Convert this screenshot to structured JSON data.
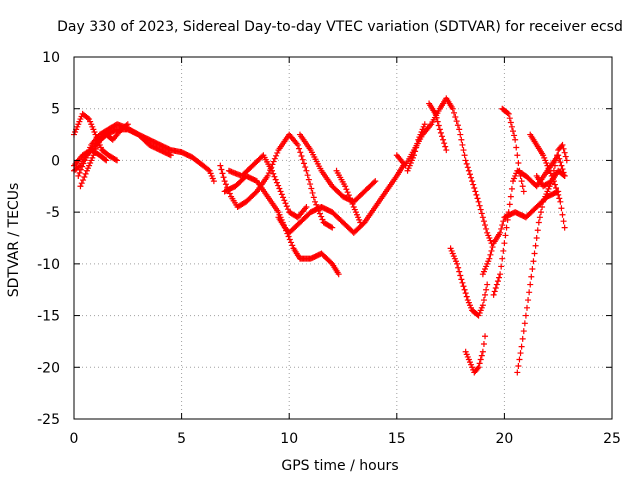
{
  "chart_data": {
    "type": "scatter",
    "title": "Day 330 of 2023, Sidereal Day-to-day VTEC variation (SDTVAR) for receiver ecsd",
    "xlabel": "GPS time / hours",
    "ylabel": "SDTVAR / TECUs",
    "xlim": [
      0,
      25
    ],
    "ylim": [
      -25,
      10
    ],
    "xticks": [
      0,
      5,
      10,
      15,
      20,
      25
    ],
    "yticks": [
      -25,
      -20,
      -15,
      -10,
      -5,
      0,
      5,
      10
    ],
    "grid": true,
    "marker": "+",
    "series": [
      {
        "name": "SDTVAR",
        "color": "#ff0000",
        "tracks": [
          [
            [
              0.0,
              -1.0
            ],
            [
              0.3,
              -0.5
            ],
            [
              0.6,
              0.5
            ],
            [
              1.0,
              1.5
            ],
            [
              1.5,
              2.5
            ],
            [
              2.0,
              3.0
            ],
            [
              2.5,
              3.0
            ],
            [
              3.0,
              2.5
            ],
            [
              3.5,
              2.0
            ],
            [
              4.0,
              1.5
            ],
            [
              4.5,
              1.0
            ],
            [
              5.0,
              0.8
            ],
            [
              5.5,
              0.3
            ],
            [
              6.0,
              -0.5
            ],
            [
              6.3,
              -1.0
            ],
            [
              6.5,
              -2.0
            ]
          ],
          [
            [
              0.0,
              2.5
            ],
            [
              0.2,
              3.5
            ],
            [
              0.4,
              4.5
            ],
            [
              0.7,
              4.0
            ],
            [
              1.0,
              2.5
            ],
            [
              1.3,
              1.0
            ],
            [
              1.6,
              0.5
            ],
            [
              2.0,
              0.0
            ]
          ],
          [
            [
              0.2,
              -1.5
            ],
            [
              0.5,
              0.0
            ],
            [
              0.8,
              1.5
            ],
            [
              1.2,
              2.5
            ],
            [
              1.6,
              3.0
            ],
            [
              2.0,
              3.5
            ],
            [
              2.4,
              3.2
            ],
            [
              3.0,
              2.5
            ],
            [
              3.5,
              1.5
            ],
            [
              4.0,
              1.0
            ],
            [
              4.5,
              0.5
            ]
          ],
          [
            [
              0.3,
              -2.5
            ],
            [
              0.6,
              -1.0
            ],
            [
              0.9,
              0.5
            ],
            [
              1.2,
              2.0
            ],
            [
              1.5,
              2.5
            ],
            [
              1.8,
              2.0
            ],
            [
              2.2,
              3.0
            ],
            [
              2.5,
              3.5
            ]
          ],
          [
            [
              0.0,
              -0.5
            ],
            [
              0.4,
              0.5
            ],
            [
              0.8,
              1.0
            ],
            [
              1.2,
              0.5
            ],
            [
              1.5,
              0.0
            ]
          ],
          [
            [
              6.8,
              -0.5
            ],
            [
              7.0,
              -2.0
            ],
            [
              7.3,
              -3.5
            ],
            [
              7.6,
              -4.5
            ],
            [
              8.0,
              -4.0
            ],
            [
              8.5,
              -3.0
            ],
            [
              9.0,
              -1.5
            ],
            [
              9.5,
              1.0
            ],
            [
              10.0,
              2.5
            ],
            [
              10.4,
              1.5
            ],
            [
              10.8,
              -1.0
            ],
            [
              11.2,
              -4.0
            ],
            [
              11.6,
              -6.0
            ],
            [
              12.0,
              -6.5
            ]
          ],
          [
            [
              7.0,
              -3.0
            ],
            [
              7.5,
              -2.5
            ],
            [
              8.0,
              -1.5
            ],
            [
              8.5,
              -2.0
            ],
            [
              9.0,
              -3.5
            ],
            [
              9.5,
              -5.0
            ],
            [
              9.8,
              -6.5
            ],
            [
              10.0,
              -7.0
            ],
            [
              10.5,
              -6.0
            ],
            [
              11.0,
              -5.0
            ],
            [
              11.5,
              -4.5
            ],
            [
              12.0,
              -5.0
            ],
            [
              12.5,
              -6.0
            ],
            [
              13.0,
              -7.0
            ],
            [
              13.5,
              -6.0
            ],
            [
              14.0,
              -4.5
            ],
            [
              14.5,
              -3.0
            ],
            [
              15.0,
              -1.5
            ],
            [
              15.3,
              -0.5
            ]
          ],
          [
            [
              7.2,
              -1.0
            ],
            [
              7.8,
              -1.5
            ],
            [
              8.3,
              -0.5
            ],
            [
              8.8,
              0.5
            ],
            [
              9.2,
              -1.0
            ],
            [
              9.6,
              -3.0
            ],
            [
              10.0,
              -5.0
            ],
            [
              10.4,
              -5.5
            ],
            [
              10.8,
              -4.5
            ]
          ],
          [
            [
              9.5,
              -5.5
            ],
            [
              9.8,
              -6.5
            ],
            [
              10.2,
              -8.5
            ],
            [
              10.5,
              -9.5
            ],
            [
              11.0,
              -9.5
            ],
            [
              11.5,
              -9.0
            ],
            [
              12.0,
              -10.0
            ],
            [
              12.3,
              -11.0
            ]
          ],
          [
            [
              10.5,
              2.5
            ],
            [
              11.0,
              1.0
            ],
            [
              11.5,
              -1.0
            ],
            [
              12.0,
              -2.5
            ],
            [
              12.5,
              -3.5
            ],
            [
              13.0,
              -4.0
            ],
            [
              13.5,
              -3.0
            ],
            [
              14.0,
              -2.0
            ]
          ],
          [
            [
              12.2,
              -1.0
            ],
            [
              12.6,
              -2.5
            ],
            [
              13.0,
              -4.5
            ],
            [
              13.3,
              -6.0
            ]
          ],
          [
            [
              15.0,
              0.5
            ],
            [
              15.4,
              -0.5
            ],
            [
              15.8,
              1.0
            ],
            [
              16.2,
              2.5
            ],
            [
              16.6,
              3.5
            ],
            [
              17.0,
              5.0
            ],
            [
              17.3,
              6.0
            ],
            [
              17.6,
              5.0
            ],
            [
              17.9,
              3.0
            ],
            [
              18.2,
              0.0
            ],
            [
              18.5,
              -2.0
            ],
            [
              18.8,
              -4.0
            ],
            [
              19.0,
              -5.5
            ],
            [
              19.2,
              -7.0
            ],
            [
              19.4,
              -8.0
            ]
          ],
          [
            [
              16.5,
              5.5
            ],
            [
              16.8,
              4.5
            ],
            [
              17.0,
              3.0
            ],
            [
              17.3,
              1.0
            ]
          ],
          [
            [
              15.5,
              -1.0
            ],
            [
              15.8,
              0.5
            ],
            [
              16.0,
              2.0
            ],
            [
              16.3,
              3.5
            ]
          ],
          [
            [
              17.5,
              -8.5
            ],
            [
              17.8,
              -10.0
            ],
            [
              18.0,
              -11.5
            ],
            [
              18.3,
              -13.5
            ],
            [
              18.5,
              -14.5
            ],
            [
              18.8,
              -15.0
            ],
            [
              19.0,
              -14.0
            ],
            [
              19.2,
              -12.0
            ]
          ],
          [
            [
              18.2,
              -18.5
            ],
            [
              18.4,
              -19.5
            ],
            [
              18.6,
              -20.5
            ],
            [
              18.8,
              -20.0
            ],
            [
              19.0,
              -18.5
            ],
            [
              19.1,
              -17.0
            ]
          ],
          [
            [
              19.0,
              -11.0
            ],
            [
              19.3,
              -9.5
            ],
            [
              19.5,
              -8.0
            ],
            [
              19.8,
              -7.0
            ],
            [
              20.0,
              -5.5
            ],
            [
              20.5,
              -5.0
            ],
            [
              21.0,
              -5.5
            ],
            [
              21.5,
              -4.5
            ],
            [
              22.0,
              -3.5
            ],
            [
              22.5,
              -3.0
            ]
          ],
          [
            [
              19.5,
              -13.0
            ],
            [
              19.8,
              -11.0
            ],
            [
              20.0,
              -8.0
            ],
            [
              20.2,
              -5.0
            ],
            [
              20.4,
              -2.0
            ],
            [
              20.6,
              -1.0
            ],
            [
              21.0,
              -1.5
            ],
            [
              21.5,
              -2.5
            ],
            [
              22.0,
              -1.0
            ],
            [
              22.5,
              0.5
            ],
            [
              22.8,
              -1.5
            ]
          ],
          [
            [
              19.9,
              5.0
            ],
            [
              20.2,
              4.5
            ],
            [
              20.5,
              2.0
            ],
            [
              20.7,
              -1.0
            ],
            [
              20.9,
              -3.0
            ]
          ],
          [
            [
              20.6,
              -20.5
            ],
            [
              20.8,
              -18.0
            ],
            [
              21.0,
              -15.0
            ],
            [
              21.2,
              -12.0
            ],
            [
              21.4,
              -9.0
            ],
            [
              21.6,
              -6.0
            ],
            [
              21.8,
              -4.0
            ],
            [
              22.0,
              -3.0
            ],
            [
              22.2,
              -2.0
            ],
            [
              22.5,
              -1.0
            ],
            [
              22.8,
              -1.5
            ]
          ],
          [
            [
              21.2,
              2.5
            ],
            [
              21.5,
              1.5
            ],
            [
              21.8,
              0.5
            ],
            [
              22.0,
              -0.5
            ],
            [
              22.3,
              -2.0
            ],
            [
              22.6,
              -4.0
            ],
            [
              22.8,
              -6.5
            ]
          ],
          [
            [
              21.5,
              -1.5
            ],
            [
              21.8,
              -2.5
            ],
            [
              22.2,
              -2.0
            ],
            [
              22.5,
              1.0
            ],
            [
              22.7,
              1.5
            ],
            [
              22.9,
              0.0
            ]
          ]
        ]
      }
    ]
  }
}
